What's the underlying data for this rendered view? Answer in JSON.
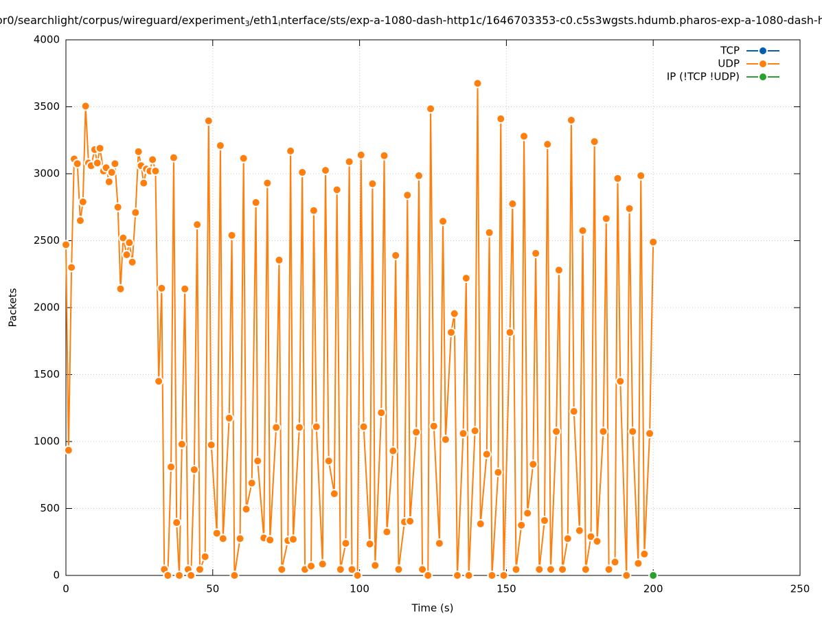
{
  "chart_data": {
    "type": "line",
    "title": [
      "or0/searchlight/corpus/wireguard/experiment",
      "3",
      "/eth1",
      "i",
      "nterface/sts/exp-a-1080-dash-http1c/1646703353-c0.c5s3wgsts.hdumb.pharos-exp-a-1080-dash-h"
    ],
    "xlabel": "Time (s)",
    "ylabel": "Packets",
    "xlim": [
      0,
      250
    ],
    "xticks": [
      0,
      50,
      100,
      150,
      200,
      250
    ],
    "ylim": [
      0,
      4000
    ],
    "yticks": [
      0,
      500,
      1000,
      1500,
      2000,
      2500,
      3000,
      3500,
      4000
    ],
    "grid": true,
    "legend": "top-right",
    "series": [
      {
        "name": "TCP",
        "color": "#0060ad",
        "x": [],
        "values": []
      },
      {
        "name": "UDP",
        "color": "#ff7f0e",
        "x": [
          0,
          0.9,
          1.9,
          2.8,
          3.9,
          4.9,
          5.8,
          6.7,
          7.7,
          8.6,
          9.8,
          10.7,
          11.6,
          12.8,
          13.7,
          14.7,
          15.6,
          16.7,
          17.7,
          18.6,
          19.5,
          20.7,
          21.6,
          22.6,
          23.7,
          24.7,
          25.6,
          26.5,
          27.4,
          28.6,
          29.5,
          30.5,
          31.6,
          32.6,
          33.5,
          34.7,
          35.8,
          36.7,
          37.7,
          38.6,
          39.5,
          40.5,
          41.6,
          42.6,
          43.7,
          44.7,
          45.6,
          47.4,
          48.6,
          49.5,
          51.4,
          52.6,
          53.5,
          55.6,
          56.5,
          57.4,
          59.3,
          60.5,
          61.4,
          63.3,
          64.7,
          65.3,
          67.4,
          68.6,
          69.5,
          71.6,
          72.6,
          73.5,
          75.6,
          76.5,
          77.4,
          79.5,
          80.5,
          81.4,
          83.5,
          84.4,
          85.3,
          87.4,
          88.4,
          89.5,
          91.4,
          92.3,
          93.5,
          95.3,
          96.5,
          97.4,
          99.3,
          100.5,
          101.4,
          103.5,
          104.4,
          105.3,
          107.4,
          108.4,
          109.3,
          111.4,
          112.3,
          113.3,
          115.3,
          116.3,
          117.2,
          119.3,
          120.2,
          121.4,
          123.3,
          124.2,
          125.3,
          127.2,
          128.4,
          129.3,
          131.2,
          132.3,
          133.3,
          135.3,
          136.3,
          137.2,
          139.3,
          140.2,
          141.2,
          143.3,
          144.2,
          145.1,
          147.2,
          148.1,
          149.1,
          151.2,
          152.1,
          153.3,
          155.1,
          156.0,
          157.2,
          159.1,
          160.0,
          161.2,
          163.0,
          164.0,
          165.1,
          167.0,
          167.9,
          169.1,
          170.9,
          172.1,
          173.0,
          174.9,
          176.0,
          177.0,
          178.8,
          180.0,
          180.9,
          183.0,
          184.0,
          184.9,
          187.0,
          187.9,
          188.8,
          190.9,
          191.9,
          193.0,
          194.9,
          195.8,
          197.0,
          198.8,
          200.0
        ],
        "values": [
          2470,
          935,
          2300,
          3110,
          3075,
          2650,
          2790,
          3505,
          3080,
          3060,
          3180,
          3080,
          3190,
          3020,
          3045,
          2940,
          3010,
          3075,
          2750,
          2140,
          2520,
          2395,
          2485,
          2340,
          2710,
          3165,
          3060,
          2930,
          3035,
          3020,
          3105,
          3020,
          1450,
          2145,
          45,
          0,
          810,
          3120,
          395,
          0,
          980,
          2140,
          45,
          0,
          790,
          2620,
          45,
          140,
          3395,
          975,
          315,
          3210,
          275,
          1175,
          2540,
          0,
          275,
          3115,
          495,
          690,
          2785,
          855,
          280,
          2930,
          265,
          1105,
          2355,
          45,
          260,
          3170,
          270,
          1105,
          3010,
          45,
          70,
          2725,
          1110,
          85,
          3025,
          855,
          610,
          2880,
          45,
          240,
          3090,
          45,
          0,
          3140,
          1110,
          235,
          2925,
          75,
          1215,
          3135,
          325,
          930,
          2390,
          45,
          400,
          2840,
          405,
          1070,
          2985,
          45,
          0,
          3485,
          1115,
          240,
          2645,
          1015,
          1815,
          1955,
          0,
          1060,
          2220,
          0,
          1080,
          3675,
          385,
          905,
          2560,
          0,
          770,
          3410,
          0,
          1815,
          2775,
          45,
          375,
          3280,
          465,
          830,
          2405,
          45,
          410,
          3220,
          45,
          1075,
          2280,
          45,
          275,
          3400,
          1225,
          335,
          2575,
          45,
          290,
          3240,
          255,
          1075,
          2665,
          45,
          100,
          2965,
          1450,
          0,
          2740,
          1075,
          90,
          2985,
          160,
          1060,
          2490
        ]
      },
      {
        "name": "IP (!TCP  !UDP)",
        "color": "#2ca02c",
        "x": [
          200
        ],
        "values": [
          0
        ]
      }
    ]
  }
}
